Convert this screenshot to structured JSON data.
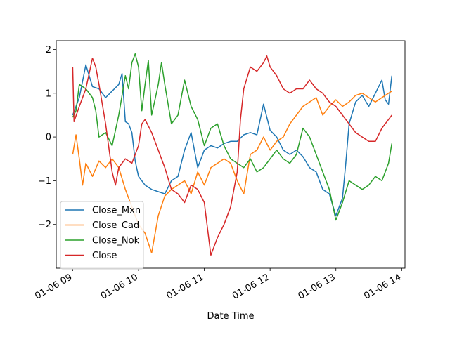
{
  "chart_data": {
    "type": "line",
    "title": "",
    "xlabel": "Date Time",
    "ylabel": "",
    "grid": false,
    "legend_position": "lower-left",
    "x_tick_labels": [
      "01-06 09",
      "01-06 10",
      "01-06 11",
      "01-06 12",
      "01-06 13",
      "01-06 14"
    ],
    "x_tick_hours": [
      9,
      10,
      11,
      12,
      13,
      14
    ],
    "x_range_hours": [
      8.75,
      14.05
    ],
    "y_ticks": [
      -2,
      -1,
      0,
      1,
      2
    ],
    "ylim": [
      -3.0,
      2.2
    ],
    "series": [
      {
        "name": "Close_Mxn",
        "color": "#1f77b4",
        "points": [
          [
            9.0,
            0.5
          ],
          [
            9.1,
            0.9
          ],
          [
            9.2,
            1.65
          ],
          [
            9.3,
            1.15
          ],
          [
            9.4,
            1.1
          ],
          [
            9.5,
            0.9
          ],
          [
            9.6,
            1.05
          ],
          [
            9.7,
            1.2
          ],
          [
            9.75,
            1.45
          ],
          [
            9.8,
            0.35
          ],
          [
            9.85,
            0.3
          ],
          [
            9.9,
            0.1
          ],
          [
            9.95,
            -0.55
          ],
          [
            10.0,
            -0.9
          ],
          [
            10.1,
            -1.1
          ],
          [
            10.2,
            -1.2
          ],
          [
            10.3,
            -1.25
          ],
          [
            10.4,
            -1.3
          ],
          [
            10.5,
            -1.0
          ],
          [
            10.6,
            -0.9
          ],
          [
            10.7,
            -0.3
          ],
          [
            10.8,
            0.1
          ],
          [
            10.9,
            -0.7
          ],
          [
            11.0,
            -0.3
          ],
          [
            11.1,
            -0.2
          ],
          [
            11.2,
            -0.25
          ],
          [
            11.3,
            -0.15
          ],
          [
            11.4,
            -0.1
          ],
          [
            11.5,
            -0.1
          ],
          [
            11.6,
            0.05
          ],
          [
            11.7,
            0.1
          ],
          [
            11.8,
            0.05
          ],
          [
            11.9,
            0.75
          ],
          [
            12.0,
            0.15
          ],
          [
            12.1,
            0.0
          ],
          [
            12.2,
            -0.3
          ],
          [
            12.3,
            -0.4
          ],
          [
            12.4,
            -0.3
          ],
          [
            12.5,
            -0.45
          ],
          [
            12.6,
            -0.7
          ],
          [
            12.7,
            -0.8
          ],
          [
            12.8,
            -1.2
          ],
          [
            12.9,
            -1.3
          ],
          [
            13.0,
            -1.8
          ],
          [
            13.1,
            -1.4
          ],
          [
            13.15,
            -0.6
          ],
          [
            13.2,
            0.3
          ],
          [
            13.3,
            0.8
          ],
          [
            13.4,
            0.95
          ],
          [
            13.5,
            0.7
          ],
          [
            13.6,
            1.0
          ],
          [
            13.7,
            1.3
          ],
          [
            13.75,
            0.85
          ],
          [
            13.8,
            0.75
          ],
          [
            13.85,
            1.4
          ]
        ]
      },
      {
        "name": "Close_Cad",
        "color": "#ff7f0e",
        "points": [
          [
            9.0,
            -0.4
          ],
          [
            9.05,
            0.05
          ],
          [
            9.1,
            -0.5
          ],
          [
            9.15,
            -1.1
          ],
          [
            9.2,
            -0.6
          ],
          [
            9.3,
            -0.9
          ],
          [
            9.4,
            -0.55
          ],
          [
            9.5,
            -0.7
          ],
          [
            9.6,
            -0.5
          ],
          [
            9.7,
            -0.7
          ],
          [
            9.8,
            -1.2
          ],
          [
            9.9,
            -1.6
          ],
          [
            10.0,
            -2.0
          ],
          [
            10.1,
            -2.2
          ],
          [
            10.2,
            -2.65
          ],
          [
            10.3,
            -1.8
          ],
          [
            10.4,
            -1.35
          ],
          [
            10.5,
            -1.2
          ],
          [
            10.6,
            -1.1
          ],
          [
            10.7,
            -1.0
          ],
          [
            10.8,
            -1.3
          ],
          [
            10.9,
            -0.8
          ],
          [
            11.0,
            -1.1
          ],
          [
            11.1,
            -0.7
          ],
          [
            11.2,
            -0.6
          ],
          [
            11.3,
            -0.5
          ],
          [
            11.4,
            -0.6
          ],
          [
            11.5,
            -1.0
          ],
          [
            11.6,
            -1.3
          ],
          [
            11.7,
            -0.4
          ],
          [
            11.8,
            -0.3
          ],
          [
            11.9,
            0.0
          ],
          [
            12.0,
            -0.3
          ],
          [
            12.1,
            -0.1
          ],
          [
            12.2,
            0.0
          ],
          [
            12.3,
            0.3
          ],
          [
            12.4,
            0.5
          ],
          [
            12.5,
            0.7
          ],
          [
            12.6,
            0.8
          ],
          [
            12.7,
            0.9
          ],
          [
            12.8,
            0.5
          ],
          [
            12.9,
            0.7
          ],
          [
            13.0,
            0.85
          ],
          [
            13.1,
            0.7
          ],
          [
            13.2,
            0.8
          ],
          [
            13.3,
            0.95
          ],
          [
            13.4,
            1.0
          ],
          [
            13.5,
            0.9
          ],
          [
            13.6,
            0.8
          ],
          [
            13.7,
            0.9
          ],
          [
            13.8,
            1.0
          ],
          [
            13.85,
            1.05
          ]
        ]
      },
      {
        "name": "Close_Nok",
        "color": "#2ca02c",
        "points": [
          [
            9.0,
            0.45
          ],
          [
            9.05,
            0.6
          ],
          [
            9.1,
            1.2
          ],
          [
            9.2,
            1.1
          ],
          [
            9.3,
            0.9
          ],
          [
            9.35,
            0.6
          ],
          [
            9.4,
            0.0
          ],
          [
            9.5,
            0.1
          ],
          [
            9.6,
            -0.2
          ],
          [
            9.7,
            0.5
          ],
          [
            9.8,
            1.4
          ],
          [
            9.85,
            1.1
          ],
          [
            9.9,
            1.7
          ],
          [
            9.95,
            1.9
          ],
          [
            10.0,
            1.6
          ],
          [
            10.05,
            0.6
          ],
          [
            10.1,
            1.2
          ],
          [
            10.15,
            1.75
          ],
          [
            10.2,
            0.5
          ],
          [
            10.3,
            1.2
          ],
          [
            10.35,
            1.7
          ],
          [
            10.4,
            1.2
          ],
          [
            10.5,
            0.3
          ],
          [
            10.6,
            0.5
          ],
          [
            10.7,
            1.3
          ],
          [
            10.8,
            0.7
          ],
          [
            10.9,
            0.4
          ],
          [
            11.0,
            -0.2
          ],
          [
            11.1,
            0.2
          ],
          [
            11.2,
            0.3
          ],
          [
            11.3,
            -0.2
          ],
          [
            11.4,
            -0.5
          ],
          [
            11.5,
            -0.6
          ],
          [
            11.6,
            -0.7
          ],
          [
            11.7,
            -0.5
          ],
          [
            11.8,
            -0.8
          ],
          [
            11.9,
            -0.7
          ],
          [
            12.0,
            -0.5
          ],
          [
            12.1,
            -0.3
          ],
          [
            12.2,
            -0.5
          ],
          [
            12.3,
            -0.6
          ],
          [
            12.4,
            -0.4
          ],
          [
            12.5,
            0.2
          ],
          [
            12.6,
            0.0
          ],
          [
            12.7,
            -0.4
          ],
          [
            12.8,
            -0.8
          ],
          [
            12.9,
            -1.2
          ],
          [
            13.0,
            -1.9
          ],
          [
            13.1,
            -1.5
          ],
          [
            13.2,
            -1.0
          ],
          [
            13.3,
            -1.1
          ],
          [
            13.4,
            -1.2
          ],
          [
            13.5,
            -1.1
          ],
          [
            13.6,
            -0.9
          ],
          [
            13.7,
            -1.0
          ],
          [
            13.8,
            -0.6
          ],
          [
            13.85,
            -0.15
          ]
        ]
      },
      {
        "name": "Close",
        "color": "#d62728",
        "points": [
          [
            9.0,
            1.6
          ],
          [
            9.02,
            0.35
          ],
          [
            9.1,
            0.7
          ],
          [
            9.2,
            1.1
          ],
          [
            9.3,
            1.8
          ],
          [
            9.35,
            1.6
          ],
          [
            9.4,
            1.2
          ],
          [
            9.5,
            0.3
          ],
          [
            9.6,
            -0.8
          ],
          [
            9.65,
            -1.1
          ],
          [
            9.7,
            -0.7
          ],
          [
            9.8,
            -0.5
          ],
          [
            9.9,
            -0.6
          ],
          [
            10.0,
            -0.2
          ],
          [
            10.05,
            0.3
          ],
          [
            10.1,
            0.4
          ],
          [
            10.2,
            0.1
          ],
          [
            10.3,
            -0.3
          ],
          [
            10.4,
            -0.7
          ],
          [
            10.5,
            -1.2
          ],
          [
            10.6,
            -1.3
          ],
          [
            10.7,
            -1.5
          ],
          [
            10.8,
            -1.1
          ],
          [
            10.9,
            -1.2
          ],
          [
            11.0,
            -1.5
          ],
          [
            11.05,
            -2.1
          ],
          [
            11.1,
            -2.7
          ],
          [
            11.2,
            -2.3
          ],
          [
            11.3,
            -2.0
          ],
          [
            11.4,
            -1.6
          ],
          [
            11.5,
            -0.8
          ],
          [
            11.55,
            0.4
          ],
          [
            11.6,
            1.1
          ],
          [
            11.7,
            1.6
          ],
          [
            11.8,
            1.5
          ],
          [
            11.9,
            1.7
          ],
          [
            11.95,
            1.85
          ],
          [
            12.0,
            1.6
          ],
          [
            12.1,
            1.4
          ],
          [
            12.2,
            1.1
          ],
          [
            12.3,
            1.0
          ],
          [
            12.4,
            1.1
          ],
          [
            12.5,
            1.1
          ],
          [
            12.6,
            1.3
          ],
          [
            12.7,
            1.1
          ],
          [
            12.8,
            1.0
          ],
          [
            12.9,
            0.8
          ],
          [
            13.0,
            0.7
          ],
          [
            13.1,
            0.5
          ],
          [
            13.2,
            0.3
          ],
          [
            13.3,
            0.1
          ],
          [
            13.4,
            0.0
          ],
          [
            13.5,
            -0.1
          ],
          [
            13.6,
            -0.1
          ],
          [
            13.7,
            0.2
          ],
          [
            13.8,
            0.4
          ],
          [
            13.85,
            0.5
          ]
        ]
      }
    ]
  }
}
